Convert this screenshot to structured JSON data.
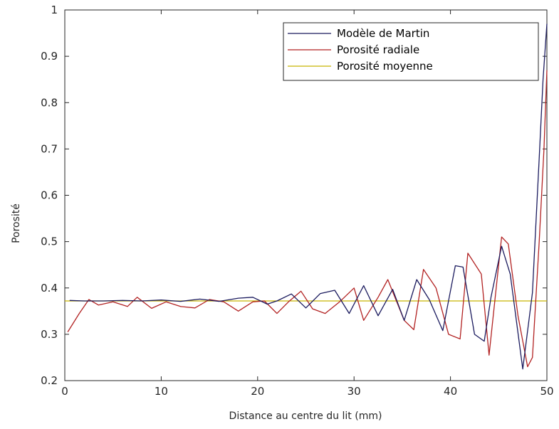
{
  "chart_data": {
    "type": "line",
    "xlabel": "Distance au centre du lit (mm)",
    "ylabel": "Porosité",
    "xlim": [
      0,
      50
    ],
    "ylim": [
      0.2,
      1
    ],
    "xticks": [
      0,
      10,
      20,
      30,
      40,
      50
    ],
    "yticks": [
      0.2,
      0.3,
      0.4,
      0.5,
      0.6,
      0.7,
      0.8,
      0.9,
      1
    ],
    "ytick_labels": [
      "0.2",
      "0.3",
      "0.4",
      "0.5",
      "0.6",
      "0.7",
      "0.8",
      "0.9",
      "1"
    ],
    "grid": false,
    "legend_position": "top-right",
    "series": [
      {
        "name": "Modèle de Martin",
        "color": "#1a1a5e",
        "x": [
          0.5,
          2,
          4,
          6,
          8,
          10,
          12,
          14,
          16,
          18,
          19.5,
          21,
          22,
          23.5,
          25,
          26.5,
          28,
          29.5,
          31,
          32.5,
          34,
          35.2,
          36.5,
          37.8,
          39.2,
          40.5,
          41.3,
          42.5,
          43.5,
          44.2,
          45.3,
          46.2,
          47.5,
          48.5,
          49.2,
          49.6,
          50
        ],
        "y": [
          0.373,
          0.372,
          0.372,
          0.373,
          0.372,
          0.374,
          0.371,
          0.376,
          0.371,
          0.378,
          0.38,
          0.365,
          0.372,
          0.387,
          0.357,
          0.388,
          0.395,
          0.345,
          0.405,
          0.34,
          0.397,
          0.33,
          0.418,
          0.375,
          0.308,
          0.448,
          0.445,
          0.3,
          0.285,
          0.38,
          0.49,
          0.43,
          0.225,
          0.39,
          0.68,
          0.85,
          0.97
        ]
      },
      {
        "name": "Porosité radiale",
        "color": "#b22222",
        "x": [
          0.3,
          1.5,
          2.5,
          3.5,
          5,
          6.5,
          7.5,
          9,
          10.5,
          12,
          13.5,
          15,
          16.5,
          18,
          19.5,
          20.7,
          22,
          23.2,
          24.5,
          25.7,
          27,
          28.5,
          30,
          31,
          32.5,
          33.5,
          35.2,
          36.2,
          37.2,
          38.5,
          39.8,
          41,
          41.8,
          43.2,
          44,
          45.3,
          46,
          47,
          48,
          48.5,
          49.2,
          49.7,
          50
        ],
        "y": [
          0.305,
          0.345,
          0.375,
          0.363,
          0.37,
          0.36,
          0.38,
          0.356,
          0.37,
          0.36,
          0.357,
          0.375,
          0.37,
          0.35,
          0.37,
          0.372,
          0.345,
          0.37,
          0.393,
          0.355,
          0.345,
          0.37,
          0.4,
          0.33,
          0.38,
          0.418,
          0.33,
          0.31,
          0.44,
          0.4,
          0.3,
          0.29,
          0.475,
          0.43,
          0.255,
          0.51,
          0.495,
          0.34,
          0.23,
          0.25,
          0.5,
          0.7,
          0.87
        ]
      },
      {
        "name": "Porosité moyenne",
        "color": "#c8b400",
        "x": [
          0,
          50
        ],
        "y": [
          0.372,
          0.372
        ]
      }
    ]
  }
}
